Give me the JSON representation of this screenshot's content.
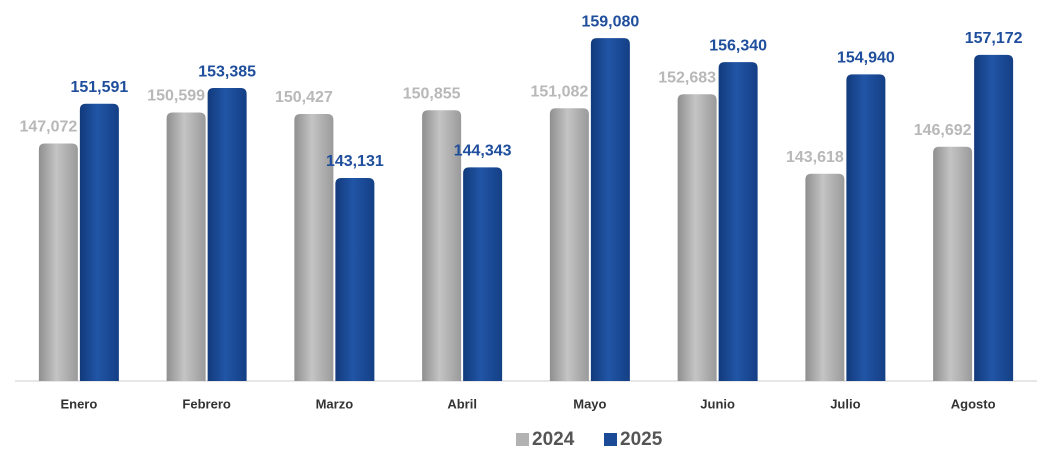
{
  "chart_data": {
    "type": "bar",
    "categories": [
      "Enero",
      "Febrero",
      "Marzo",
      "Abril",
      "Mayo",
      "Junio",
      "Julio",
      "Agosto"
    ],
    "series": [
      {
        "name": "2024",
        "color": "#b2b2b2",
        "label_color": "#b8b8b8",
        "values": [
          147072,
          150599,
          150427,
          150855,
          151082,
          152683,
          143618,
          146692
        ],
        "value_labels": [
          "147,072",
          "150,599",
          "150,427",
          "150,855",
          "151,082",
          "152,683",
          "143,618",
          "146,692"
        ]
      },
      {
        "name": "2025",
        "color": "#1b4a97",
        "label_color": "#1f4e9c",
        "values": [
          151591,
          153385,
          143131,
          144343,
          159080,
          156340,
          154940,
          157172
        ],
        "value_labels": [
          "151,591",
          "153,385",
          "143,131",
          "144,343",
          "159,080",
          "156,340",
          "154,940",
          "157,172"
        ]
      }
    ],
    "ylim": [
      120000,
      160000
    ],
    "legend": "bottom"
  }
}
